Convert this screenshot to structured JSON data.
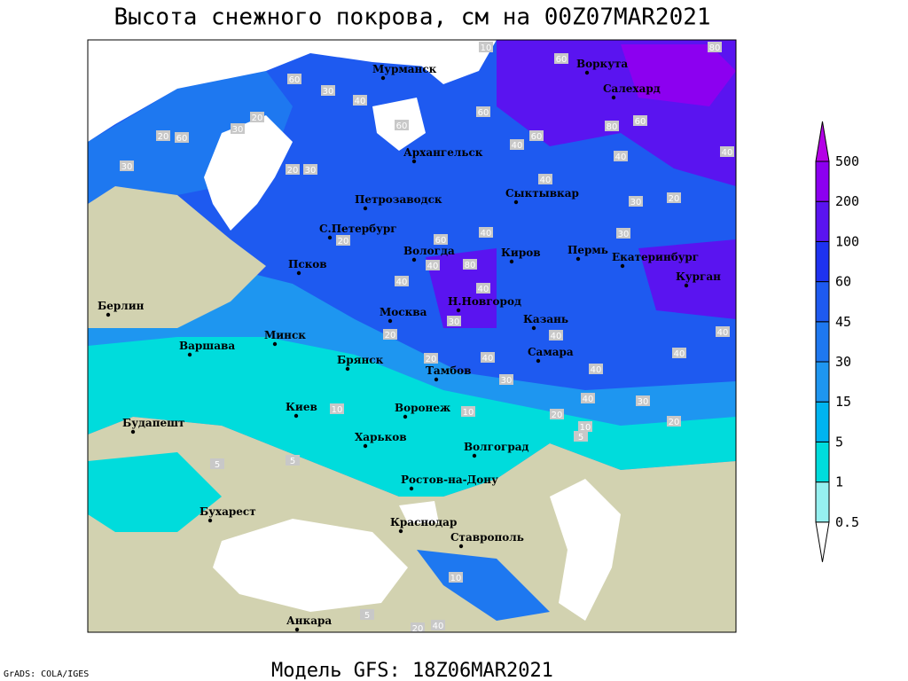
{
  "title": "Высота снежного покрова, см на 00Z07MAR2021",
  "subtitle": "Модель GFS: 18Z06MAR2021",
  "credit": "GrADS: COLA/IGES",
  "legend": {
    "levels": [
      0.5,
      1,
      5,
      15,
      30,
      45,
      60,
      100,
      200,
      500
    ],
    "colors": [
      "#ffffff",
      "#96f0f0",
      "#00dcdc",
      "#00b4f0",
      "#1e96f0",
      "#1e78f0",
      "#1e5af0",
      "#1e32f0",
      "#5a14f0",
      "#8c00f0",
      "#b400e6"
    ]
  },
  "cities": [
    "Мурманск",
    "Воркута",
    "Салехард",
    "Архангельск",
    "Сыктывкар",
    "Петрозаводск",
    "С.Петербург",
    "Вологда",
    "Киров",
    "Пермь",
    "Екатеринбург",
    "Курган",
    "Псков",
    "Н.Новгород",
    "Казань",
    "Москва",
    "Минск",
    "Берлин",
    "Варшава",
    "Брянск",
    "Тамбов",
    "Самара",
    "Воронеж",
    "Киев",
    "Будапешт",
    "Харьков",
    "Волгоград",
    "Ростов-на-Дону",
    "Бухарест",
    "Краснодар",
    "Ставрополь",
    "Анкара"
  ],
  "contour_labels": [
    10,
    60,
    80,
    60,
    30,
    40,
    20,
    60,
    60,
    40,
    60,
    80,
    60,
    30,
    20,
    60,
    40,
    40,
    30,
    20,
    30,
    40,
    30,
    20,
    30,
    20,
    40,
    60,
    80,
    40,
    40,
    40,
    30,
    20,
    40,
    40,
    40,
    40,
    20,
    30,
    40,
    40,
    30,
    20,
    10,
    10,
    10,
    5,
    20,
    5,
    5,
    10,
    5,
    20,
    40
  ]
}
